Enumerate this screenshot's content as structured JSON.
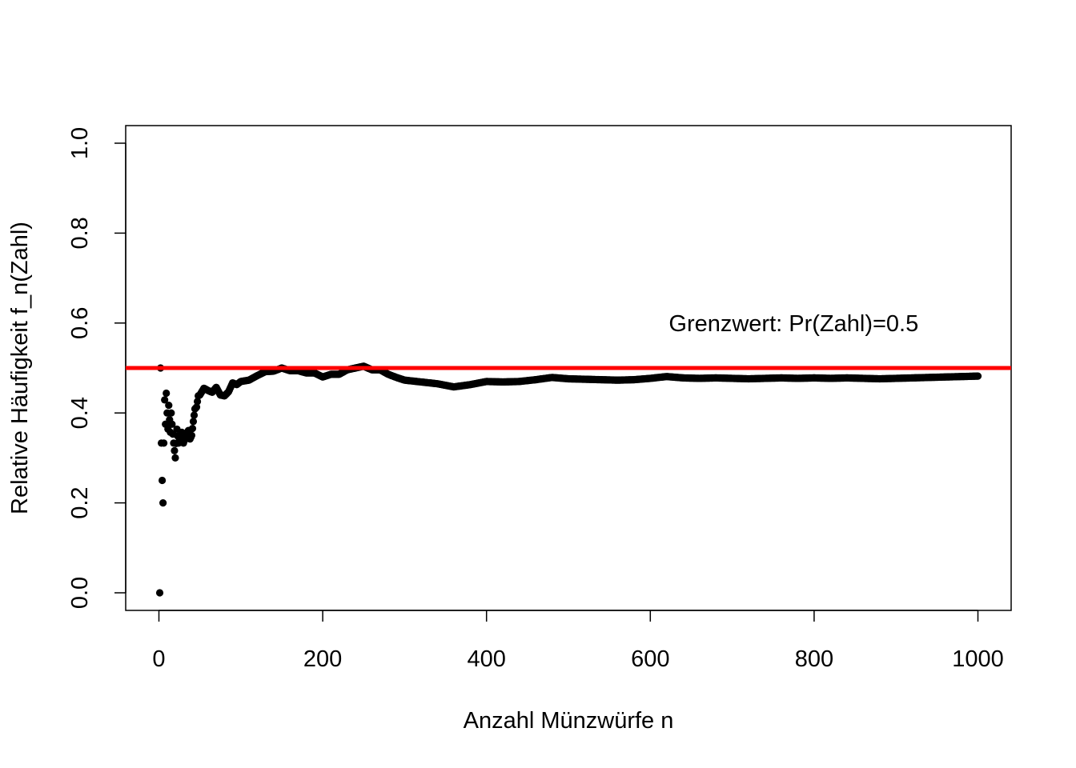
{
  "chart_data": {
    "type": "scatter",
    "title": "",
    "xlabel": "Anzahl Münzwürfe n",
    "ylabel": "Relative Häufigkeit f_n(Zahl)",
    "xlim": [
      1,
      1000
    ],
    "ylim": [
      0,
      1
    ],
    "x_ticks": [
      0,
      200,
      400,
      600,
      800,
      1000
    ],
    "x_tick_labels": [
      "0",
      "200",
      "400",
      "600",
      "800",
      "1000"
    ],
    "y_ticks": [
      0,
      0.2,
      0.4,
      0.6,
      0.8,
      1
    ],
    "y_tick_labels": [
      "0.0",
      "0.2",
      "0.4",
      "0.6",
      "0.8",
      "1.0"
    ],
    "grid": false,
    "point_color": "#000000",
    "reference_line": {
      "y": 0.5,
      "color": "#ff0000"
    },
    "annotation": {
      "text": "Grenzwert: Pr(Zahl)=0.5",
      "x": 775,
      "y": 0.6
    },
    "series": [
      {
        "x": [
          1,
          2,
          3,
          4,
          5,
          6,
          7,
          8,
          9,
          10,
          11,
          12,
          13,
          14,
          15,
          16,
          17,
          18,
          19,
          20,
          22,
          24,
          26,
          28,
          30,
          32,
          34,
          36,
          38,
          40,
          42,
          44,
          46,
          48,
          50,
          55,
          60,
          65,
          70,
          75,
          80,
          85,
          90,
          95,
          100,
          110,
          120,
          130,
          140,
          150,
          160,
          170,
          180,
          190,
          200,
          210,
          220,
          230,
          240,
          250,
          260,
          270,
          280,
          290,
          300,
          320,
          340,
          360,
          380,
          400,
          420,
          440,
          460,
          480,
          500,
          520,
          540,
          560,
          580,
          600,
          620,
          640,
          660,
          680,
          700,
          720,
          740,
          760,
          780,
          800,
          820,
          840,
          860,
          880,
          900,
          920,
          940,
          960,
          980,
          1000
        ],
        "y": [
          0,
          0.5,
          0.333,
          0.25,
          0.2,
          0.333,
          0.429,
          0.375,
          0.444,
          0.4,
          0.364,
          0.417,
          0.385,
          0.357,
          0.4,
          0.375,
          0.353,
          0.333,
          0.316,
          0.3,
          0.364,
          0.333,
          0.346,
          0.357,
          0.333,
          0.344,
          0.353,
          0.361,
          0.342,
          0.35,
          0.381,
          0.409,
          0.413,
          0.438,
          0.44,
          0.455,
          0.45,
          0.446,
          0.457,
          0.44,
          0.438,
          0.447,
          0.467,
          0.463,
          0.47,
          0.473,
          0.483,
          0.492,
          0.493,
          0.5,
          0.494,
          0.494,
          0.489,
          0.489,
          0.48,
          0.486,
          0.486,
          0.496,
          0.5,
          0.504,
          0.496,
          0.496,
          0.486,
          0.479,
          0.473,
          0.469,
          0.465,
          0.458,
          0.463,
          0.47,
          0.469,
          0.47,
          0.474,
          0.479,
          0.476,
          0.475,
          0.474,
          0.473,
          0.474,
          0.477,
          0.481,
          0.478,
          0.477,
          0.478,
          0.477,
          0.476,
          0.477,
          0.478,
          0.477,
          0.478,
          0.477,
          0.478,
          0.477,
          0.476,
          0.477,
          0.478,
          0.479,
          0.48,
          0.481,
          0.482
        ]
      }
    ]
  }
}
